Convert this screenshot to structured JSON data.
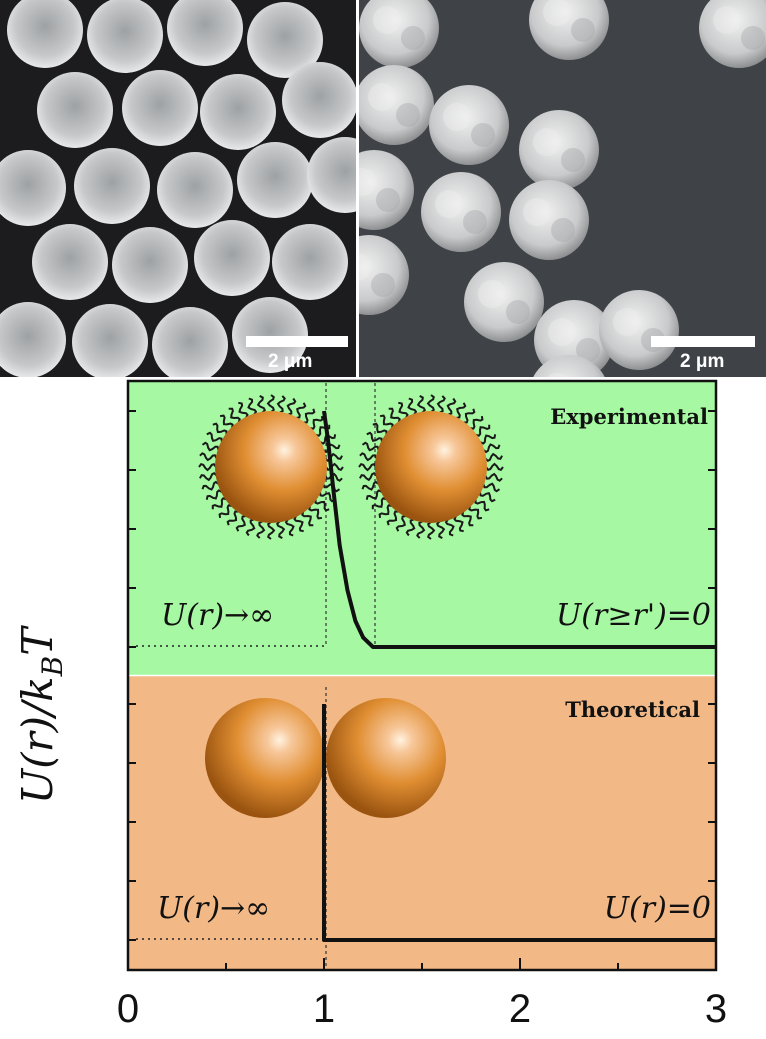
{
  "sem": {
    "left_scale_label": "2 μm",
    "right_scale_label": "2 μm"
  },
  "chart_data": [
    {
      "type": "line",
      "panel": "Experimental",
      "background": "#a6f9a2",
      "xlim": [
        0,
        3
      ],
      "series": [
        {
          "x": [
            1.0,
            1.02,
            1.05,
            1.08,
            1.12,
            1.16,
            1.2,
            1.25,
            1.3,
            1.4,
            2.0,
            3.0
          ],
          "y": [
            1.0,
            0.88,
            0.65,
            0.43,
            0.24,
            0.11,
            0.04,
            0.0,
            0.0,
            0.0,
            0.0,
            0.0
          ]
        }
      ],
      "annotations": {
        "title": "Experimental",
        "left": "U(r)→∞",
        "right": "U(r≥r')=0"
      }
    },
    {
      "type": "line",
      "panel": "Theoretical",
      "background": "#f2b987",
      "xlim": [
        0,
        3
      ],
      "series": [
        {
          "x": [
            1.0,
            1.0,
            1.01,
            3.0
          ],
          "y": [
            1.0,
            0.0,
            0.0,
            0.0
          ]
        }
      ],
      "annotations": {
        "title": "Theoretical",
        "left": "U(r)→∞",
        "right": "U(r)=0"
      }
    }
  ],
  "axes": {
    "ylabel": "U(r)/k_B T",
    "xticks": [
      "0",
      "1",
      "2",
      "3"
    ]
  },
  "colors": {
    "sphere_light": "#f7c79a",
    "sphere_mid": "#e08e32",
    "sphere_dark": "#9a5410",
    "curve": "#111111"
  }
}
